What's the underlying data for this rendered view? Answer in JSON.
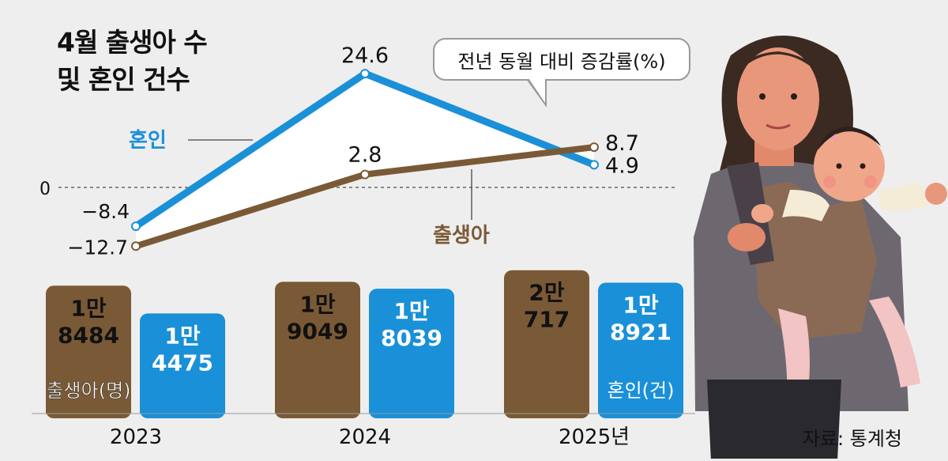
{
  "title_line1": "4월 출생아 수",
  "title_line2": "및 혼인 건수",
  "source": "자료: 통계청",
  "colors": {
    "births": "#7a5a36",
    "marriages": "#1a90d8",
    "background": "#eeeeee"
  },
  "chart_data": [
    {
      "type": "line",
      "annotation": "전년 동월 대비 증감률(%)",
      "zero_label": "0",
      "x": [
        "2023",
        "2024",
        "2025"
      ],
      "series": [
        {
          "name": "혼인",
          "values": [
            -8.4,
            24.6,
            4.9
          ],
          "labels": [
            "−8.4",
            "24.6",
            "4.9"
          ],
          "color": "#1a90d8"
        },
        {
          "name": "출생아",
          "values": [
            -12.7,
            2.8,
            8.7
          ],
          "labels": [
            "−12.7",
            "2.8",
            "8.7"
          ],
          "color": "#7a5a36"
        }
      ],
      "ylim": [
        -15,
        28
      ],
      "grid": false
    },
    {
      "type": "bar",
      "categories": [
        "2023",
        "2024",
        "2025년"
      ],
      "series": [
        {
          "name": "출생아(명)",
          "values": [
            18484,
            19049,
            20717
          ],
          "labels": [
            [
              "1만",
              "8484"
            ],
            [
              "1만",
              "9049"
            ],
            [
              "2만",
              "717"
            ]
          ],
          "color": "#7a5a36"
        },
        {
          "name": "혼인(건)",
          "values": [
            14475,
            18039,
            18921
          ],
          "labels": [
            [
              "1만",
              "4475"
            ],
            [
              "1만",
              "8039"
            ],
            [
              "1만",
              "8921"
            ]
          ],
          "color": "#1a90d8"
        }
      ]
    }
  ]
}
